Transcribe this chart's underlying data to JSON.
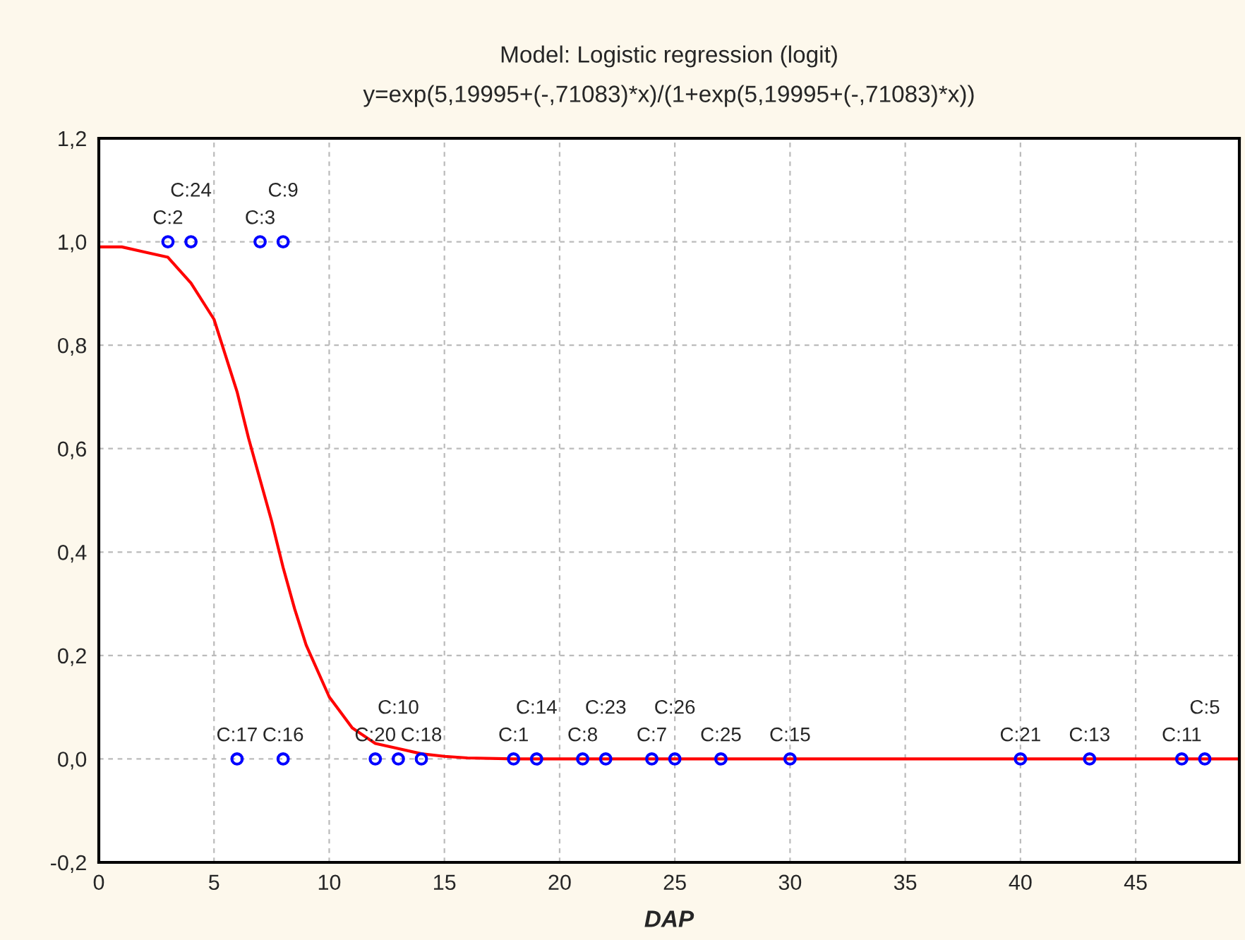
{
  "chart_data": {
    "type": "scatter",
    "title": "Model: Logistic regression (logit)",
    "subtitle": "y=exp(5,19995+(-,71083)*x)/(1+exp(5,19995+(-,71083)*x))",
    "xlabel": "DAP",
    "xlim": [
      0,
      49.5
    ],
    "xticks": [
      0,
      5,
      10,
      15,
      20,
      25,
      30,
      35,
      40,
      45
    ],
    "ylim": [
      -0.2,
      1.2
    ],
    "yticks": [
      {
        "value": -0.2,
        "label": "-0,2"
      },
      {
        "value": 0,
        "label": "0,0"
      },
      {
        "value": 0.2,
        "label": "0,2"
      },
      {
        "value": 0.4,
        "label": "0,4"
      },
      {
        "value": 0.6,
        "label": "0,6"
      },
      {
        "value": 0.8,
        "label": "0,8"
      },
      {
        "value": 1.0,
        "label": "1,0"
      },
      {
        "value": 1.2,
        "label": "1,2"
      }
    ],
    "grid": true,
    "marker": "circle",
    "series": [
      {
        "type": "scatter",
        "color": "#0000ff",
        "x": [
          3,
          4,
          7,
          8,
          6,
          8,
          12,
          13,
          14,
          18,
          19,
          21,
          22,
          24,
          25,
          27,
          30,
          40,
          43,
          47,
          48
        ],
        "values": [
          1,
          1,
          1,
          1,
          0,
          0,
          0,
          0,
          0,
          0,
          0,
          0,
          0,
          0,
          0,
          0,
          0,
          0,
          0,
          0,
          0
        ]
      },
      {
        "type": "line",
        "color": "#ff0000",
        "marker": "none",
        "x": [
          0,
          1,
          2,
          3,
          4,
          5,
          6,
          6.5,
          7,
          7.5,
          8,
          8.5,
          9,
          10,
          11,
          12,
          13,
          14,
          15,
          16,
          18,
          20,
          25,
          30,
          40,
          49.5
        ],
        "values": [
          0.99,
          0.99,
          0.98,
          0.97,
          0.92,
          0.85,
          0.71,
          0.62,
          0.54,
          0.46,
          0.37,
          0.29,
          0.22,
          0.12,
          0.06,
          0.03,
          0.02,
          0.01,
          0.005,
          0.002,
          0,
          0,
          0,
          0,
          0,
          0
        ]
      }
    ],
    "annotations": [
      {
        "text": "C:2",
        "x": 3,
        "y": 1
      },
      {
        "text": "C:24",
        "x": 4,
        "y": 1
      },
      {
        "text": "C:3",
        "x": 7,
        "y": 1
      },
      {
        "text": "C:9",
        "x": 8,
        "y": 1
      },
      {
        "text": "C:17",
        "x": 6,
        "y": 0
      },
      {
        "text": "C:16",
        "x": 8,
        "y": 0
      },
      {
        "text": "C:20",
        "x": 12,
        "y": 0
      },
      {
        "text": "C:10",
        "x": 13,
        "y": 0
      },
      {
        "text": "C:18",
        "x": 14,
        "y": 0
      },
      {
        "text": "C:1",
        "x": 18,
        "y": 0
      },
      {
        "text": "C:14",
        "x": 19,
        "y": 0
      },
      {
        "text": "C:8",
        "x": 21,
        "y": 0
      },
      {
        "text": "C:23",
        "x": 22,
        "y": 0
      },
      {
        "text": "C:7",
        "x": 24,
        "y": 0
      },
      {
        "text": "C:26",
        "x": 25,
        "y": 0
      },
      {
        "text": "C:25",
        "x": 27,
        "y": 0
      },
      {
        "text": "C:15",
        "x": 30,
        "y": 0
      },
      {
        "text": "C:21",
        "x": 40,
        "y": 0
      },
      {
        "text": "C:13",
        "x": 43,
        "y": 0
      },
      {
        "text": "C:11",
        "x": 47,
        "y": 0
      },
      {
        "text": "C:5",
        "x": 48,
        "y": 0
      }
    ]
  }
}
